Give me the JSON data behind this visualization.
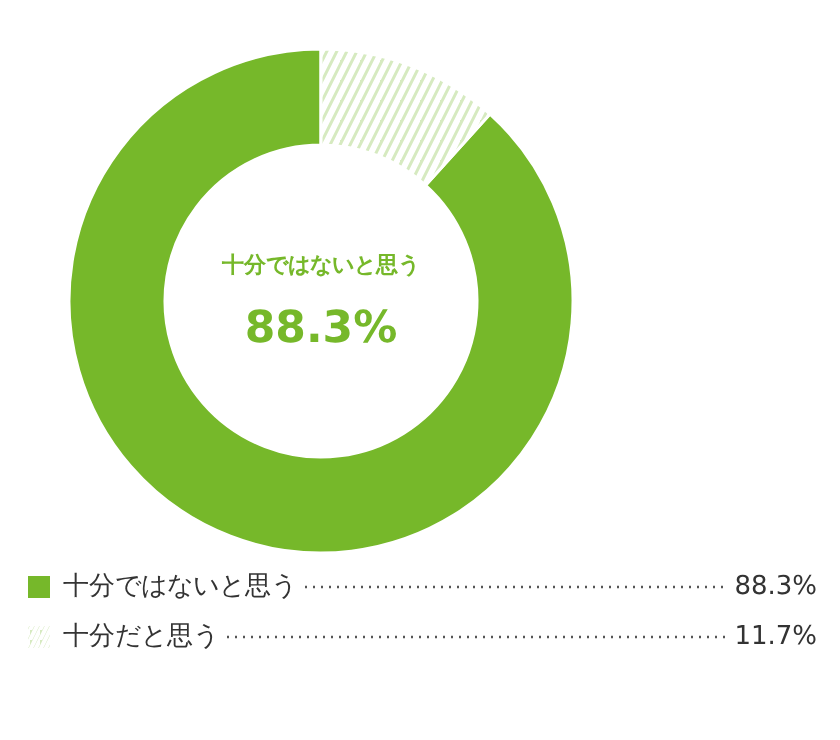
{
  "chart_data": {
    "type": "donut",
    "categories": [
      "十分ではないと思う",
      "十分だと思う"
    ],
    "values": [
      88.3,
      11.7
    ],
    "colors": [
      "#76b82a",
      "#d6eac0"
    ],
    "value_labels": [
      "88.3%",
      "11.7%"
    ],
    "annotations": [
      "十分ではないと思う",
      "88.3%"
    ],
    "legend": "bottom"
  }
}
